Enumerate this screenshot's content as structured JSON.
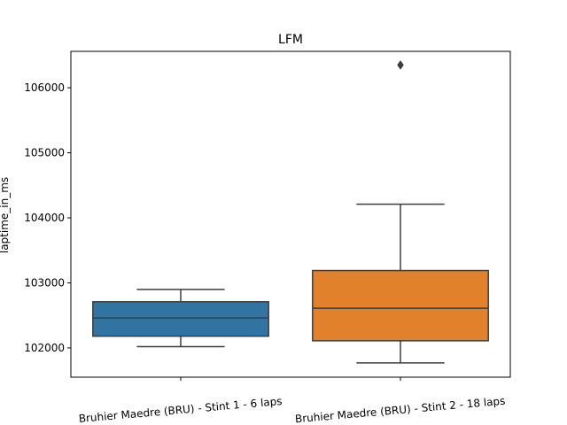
{
  "chart_data": {
    "type": "box",
    "title": "LFM",
    "xlabel": "",
    "ylabel": "laptime_in_ms",
    "ylim": [
      101550,
      106560
    ],
    "yticks": [
      102000,
      103000,
      104000,
      105000,
      106000
    ],
    "ytick_labels": [
      "102000",
      "103000",
      "104000",
      "105000",
      "106000"
    ],
    "grid": false,
    "legend": "none",
    "categories": [
      "Bruhier Maedre (BRU) - Stint 1 - 6 laps",
      "Bruhier Maedre (BRU) - Stint 2 - 18 laps"
    ],
    "boxes": [
      {
        "category": "Bruhier Maedre (BRU) - Stint 1 - 6 laps",
        "whisker_low": 102020,
        "q1": 102180,
        "median": 102460,
        "q3": 102710,
        "whisker_high": 102900,
        "outliers": [],
        "color": "#3274a1"
      },
      {
        "category": "Bruhier Maedre (BRU) - Stint 2 - 18 laps",
        "whisker_low": 101770,
        "q1": 102110,
        "median": 102610,
        "q3": 103190,
        "whisker_high": 104210,
        "outliers": [
          106350
        ],
        "color": "#e1812c"
      }
    ],
    "line_color": "#3d3d3d"
  }
}
